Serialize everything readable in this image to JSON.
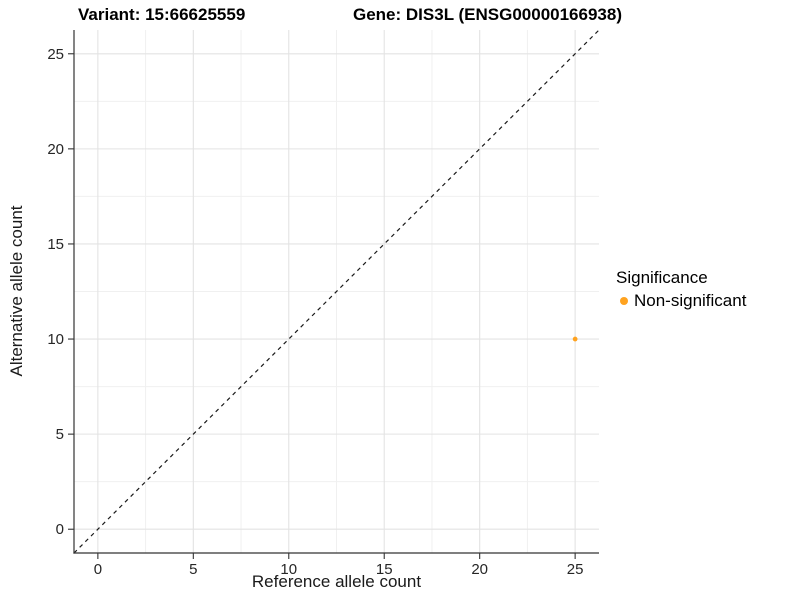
{
  "chart_data": {
    "type": "scatter",
    "titles": {
      "variant": "Variant: 15:66625559",
      "gene": "Gene: DIS3L (ENSG00000166938)"
    },
    "xlabel": "Reference allele count",
    "ylabel": "Alternative allele count",
    "xlim": [
      -1.25,
      26.25
    ],
    "ylim": [
      -1.25,
      26.25
    ],
    "x_ticks": [
      0,
      5,
      10,
      15,
      20,
      25
    ],
    "y_ticks": [
      0,
      5,
      10,
      15,
      20,
      25
    ],
    "minor_grid_halfstep": 2.5,
    "grid": {
      "major": true,
      "minor": true
    },
    "reference_line": {
      "type": "identity",
      "equation": "y = x",
      "dashed": true,
      "color": "#1a1a1a"
    },
    "series": [
      {
        "name": "Non-significant",
        "color": "#FFA320",
        "points": [
          {
            "x": 25,
            "y": 10
          }
        ]
      }
    ],
    "legend": {
      "title": "Significance",
      "position": "right",
      "items": [
        {
          "label": "Non-significant",
          "color": "#FFA320"
        }
      ]
    },
    "style": {
      "axis_line_color": "#333333",
      "tick_mark_color": "#333333",
      "grid_major_color": "#e3e3e3",
      "grid_minor_color": "#f0f0f0",
      "background": "#ffffff"
    }
  }
}
